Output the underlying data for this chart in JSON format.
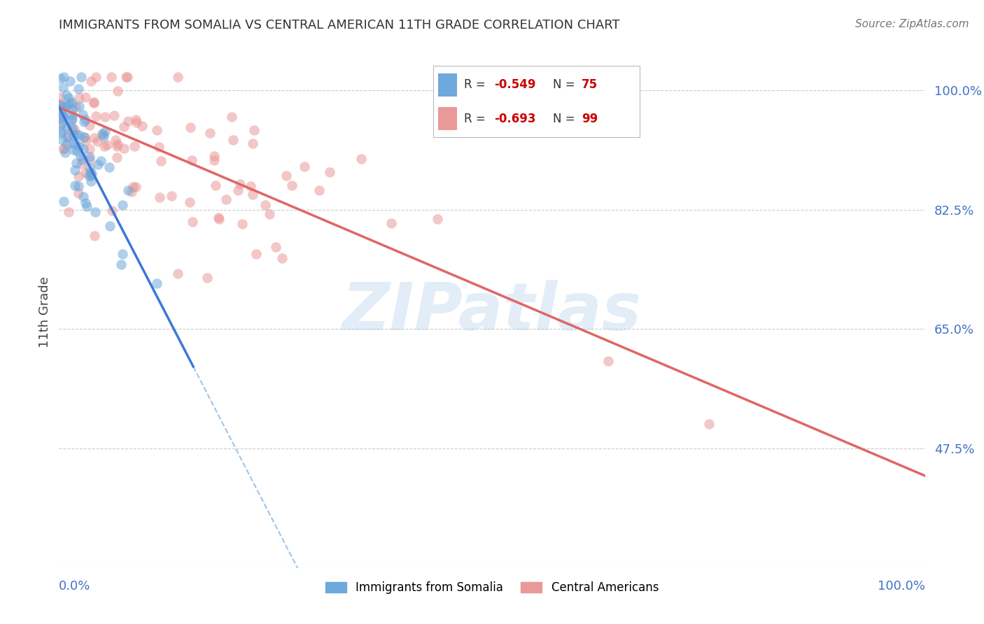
{
  "title": "IMMIGRANTS FROM SOMALIA VS CENTRAL AMERICAN 11TH GRADE CORRELATION CHART",
  "source": "Source: ZipAtlas.com",
  "ylabel": "11th Grade",
  "ytick_labels": [
    "100.0%",
    "82.5%",
    "65.0%",
    "47.5%"
  ],
  "ytick_values": [
    1.0,
    0.825,
    0.65,
    0.475
  ],
  "somalia_color": "#6fa8dc",
  "central_color": "#ea9999",
  "somalia_line_color": "#3c78d8",
  "central_line_color": "#e06666",
  "dashed_line_color": "#9fc5e8",
  "watermark": "ZIPatlas",
  "background_color": "#ffffff",
  "grid_color": "#cccccc",
  "xlim": [
    0.0,
    1.0
  ],
  "ylim": [
    0.3,
    1.05
  ],
  "somalia_line_x0": 0.0,
  "somalia_line_y0": 0.975,
  "somalia_line_x1": 0.155,
  "somalia_line_y1": 0.595,
  "central_line_x0": 0.0,
  "central_line_y0": 0.975,
  "central_line_x1": 1.0,
  "central_line_y1": 0.435,
  "legend_r_somalia": "-0.549",
  "legend_n_somalia": "75",
  "legend_r_central": "-0.693",
  "legend_n_central": "99"
}
